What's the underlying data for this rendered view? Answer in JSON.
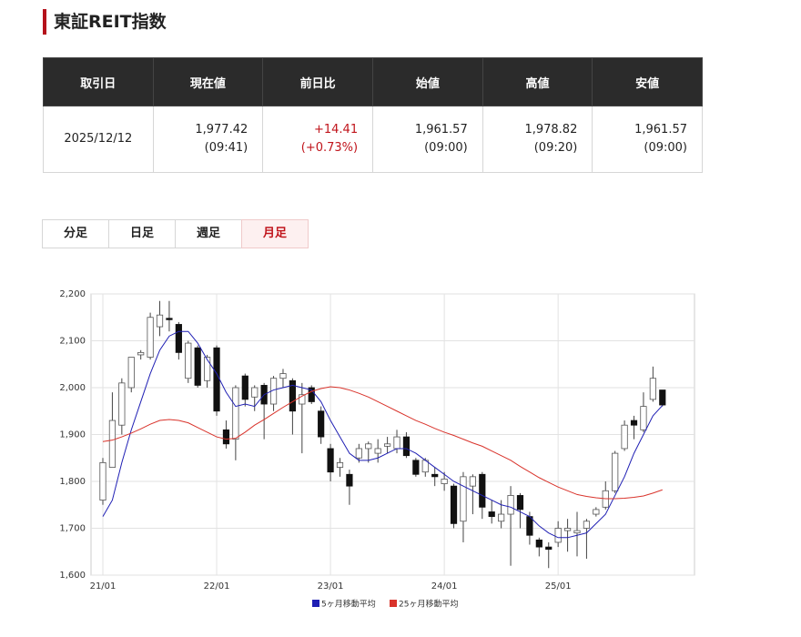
{
  "header": {
    "title": "東証REIT指数"
  },
  "table": {
    "headers": [
      "取引日",
      "現在値",
      "前日比",
      "始値",
      "高値",
      "安値"
    ],
    "cells": [
      {
        "value": "2025/12/12"
      },
      {
        "value": "1,977.42",
        "sub": "(09:41)"
      },
      {
        "value": "+14.41",
        "sub": "(+0.73%)"
      },
      {
        "value": "1,961.57",
        "sub": "(09:00)"
      },
      {
        "value": "1,978.82",
        "sub": "(09:20)"
      },
      {
        "value": "1,961.57",
        "sub": "(09:00)"
      }
    ]
  },
  "tabs": [
    "分足",
    "日足",
    "週足",
    "月足"
  ],
  "chart_data": {
    "type": "candlestick",
    "categories": [
      "21/01",
      null,
      null,
      null,
      null,
      null,
      null,
      null,
      null,
      null,
      null,
      null,
      "22/01",
      null,
      null,
      null,
      null,
      null,
      null,
      null,
      null,
      null,
      null,
      null,
      "23/01",
      null,
      null,
      null,
      null,
      null,
      null,
      null,
      null,
      null,
      null,
      null,
      "24/01",
      null,
      null,
      null,
      null,
      null,
      null,
      null,
      null,
      null,
      null,
      null,
      "25/01",
      null,
      null,
      null,
      null,
      null,
      null,
      null,
      null,
      null,
      null,
      null
    ],
    "open": [
      1760,
      1830,
      1920,
      2000,
      2070,
      2065,
      2130,
      2148,
      2135,
      2020,
      2085,
      2015,
      2085,
      1910,
      1890,
      2025,
      1980,
      2005,
      1965,
      2020,
      2015,
      1965,
      2000,
      1950,
      1870,
      1830,
      1815,
      1850,
      1870,
      1860,
      1875,
      1870,
      1895,
      1845,
      1820,
      1815,
      1795,
      1790,
      1715,
      1790,
      1815,
      1735,
      1715,
      1730,
      1770,
      1725,
      1675,
      1660,
      1670,
      1695,
      1690,
      1700,
      1730,
      1745,
      1780,
      1870,
      1930,
      1910,
      1975,
      1995
    ],
    "high": [
      1850,
      1990,
      2020,
      2065,
      2080,
      2160,
      2185,
      2185,
      2140,
      2100,
      2090,
      2070,
      2090,
      1930,
      2005,
      2030,
      2005,
      2010,
      2025,
      2040,
      2020,
      2010,
      2005,
      1960,
      1880,
      1850,
      1825,
      1880,
      1885,
      1890,
      1895,
      1910,
      1905,
      1850,
      1850,
      1830,
      1820,
      1795,
      1820,
      1815,
      1820,
      1760,
      1760,
      1790,
      1775,
      1735,
      1680,
      1670,
      1715,
      1720,
      1735,
      1720,
      1745,
      1800,
      1865,
      1930,
      1940,
      1990,
      2045,
      1995
    ],
    "low": [
      1750,
      1830,
      1900,
      1990,
      2060,
      2060,
      2110,
      2120,
      2060,
      2010,
      2000,
      2000,
      1940,
      1870,
      1845,
      1960,
      1950,
      1890,
      1950,
      2000,
      1900,
      1860,
      1965,
      1880,
      1800,
      1810,
      1750,
      1840,
      1840,
      1840,
      1860,
      1860,
      1850,
      1810,
      1810,
      1790,
      1780,
      1700,
      1670,
      1730,
      1720,
      1710,
      1700,
      1620,
      1700,
      1665,
      1640,
      1615,
      1660,
      1650,
      1640,
      1635,
      1725,
      1740,
      1775,
      1865,
      1890,
      1905,
      1970,
      1960
    ],
    "close": [
      1840,
      1930,
      2010,
      2065,
      2075,
      2150,
      2155,
      2145,
      2075,
      2095,
      2005,
      2065,
      1950,
      1880,
      2000,
      1975,
      2000,
      1965,
      2020,
      2030,
      1950,
      1985,
      1970,
      1895,
      1820,
      1840,
      1790,
      1870,
      1880,
      1870,
      1880,
      1895,
      1855,
      1815,
      1845,
      1810,
      1805,
      1710,
      1810,
      1810,
      1745,
      1725,
      1730,
      1770,
      1740,
      1685,
      1660,
      1655,
      1700,
      1700,
      1695,
      1715,
      1740,
      1780,
      1860,
      1920,
      1920,
      1960,
      2020,
      1963
    ],
    "series": [
      {
        "name": "5ヶ月移動平均",
        "color": "#1f1fb4",
        "values": [
          1725,
          1760,
          1840,
          1910,
          1970,
          2030,
          2080,
          2110,
          2120,
          2120,
          2095,
          2060,
          2030,
          1990,
          1960,
          1965,
          1960,
          1985,
          1995,
          2000,
          2005,
          2000,
          1995,
          1970,
          1930,
          1895,
          1860,
          1845,
          1845,
          1850,
          1860,
          1870,
          1870,
          1860,
          1845,
          1830,
          1815,
          1800,
          1790,
          1780,
          1770,
          1760,
          1750,
          1745,
          1735,
          1725,
          1705,
          1690,
          1680,
          1680,
          1685,
          1690,
          1710,
          1730,
          1770,
          1810,
          1860,
          1900,
          1940,
          1962
        ]
      },
      {
        "name": "25ヶ月移動平均",
        "color": "#d9332b",
        "values": [
          1885,
          1888,
          1895,
          1903,
          1912,
          1922,
          1930,
          1932,
          1930,
          1925,
          1915,
          1905,
          1895,
          1890,
          1892,
          1905,
          1920,
          1932,
          1945,
          1958,
          1970,
          1982,
          1992,
          1998,
          2002,
          2000,
          1995,
          1988,
          1980,
          1970,
          1960,
          1950,
          1940,
          1930,
          1922,
          1913,
          1905,
          1898,
          1890,
          1882,
          1875,
          1865,
          1855,
          1845,
          1832,
          1820,
          1808,
          1798,
          1788,
          1780,
          1772,
          1768,
          1765,
          1763,
          1763,
          1764,
          1766,
          1769,
          1775,
          1782
        ]
      }
    ],
    "ylim": [
      1600,
      2200
    ],
    "yticks": [
      {
        "value": 1600,
        "label": "1,600"
      },
      {
        "value": 1700,
        "label": "1,700"
      },
      {
        "value": 1800,
        "label": "1,800"
      },
      {
        "value": 1900,
        "label": "1,900"
      },
      {
        "value": 2000,
        "label": "2,000"
      },
      {
        "value": 2100,
        "label": "2,100"
      },
      {
        "value": 2200,
        "label": "2,200"
      }
    ],
    "grid": true
  }
}
